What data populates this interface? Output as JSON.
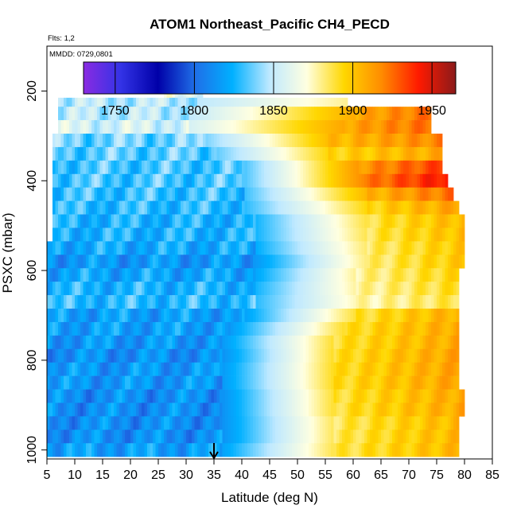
{
  "chart_data": {
    "type": "heatmap",
    "title": "ATOM1 Northeast_Pacific CH4_PECD",
    "flights_label": "Flts: 1,2",
    "dates_label": "MMDD: 0729,0801",
    "xlabel": "Latitude (deg N)",
    "ylabel": "PSXC (mbar)",
    "xlim": [
      5,
      85
    ],
    "ylim": [
      1020,
      100
    ],
    "x_ticks": [
      "5",
      "10",
      "15",
      "20",
      "25",
      "30",
      "35",
      "40",
      "45",
      "50",
      "55",
      "60",
      "65",
      "70",
      "75",
      "80",
      "85"
    ],
    "y_ticks": [
      "200",
      "400",
      "600",
      "800",
      "1000"
    ],
    "colorbar": {
      "range": [
        1730,
        1965
      ],
      "ticks": [
        "1750",
        "1800",
        "1850",
        "1900",
        "1950"
      ],
      "colors": [
        "#8a2be2",
        "#3333e6",
        "#0000a8",
        "#1f6fe8",
        "#00b0ff",
        "#bfe9ff",
        "#ffffe0",
        "#ffd700",
        "#ff8c00",
        "#ff1a00",
        "#8b1a1a"
      ]
    },
    "marker_latitude": 35,
    "profiles": [
      {
        "p": 200,
        "min_lat": 26,
        "max_lat": 33,
        "left": 1862,
        "right": 1872,
        "grad_start": 34,
        "hi_start": 60
      },
      {
        "p": 230,
        "min_lat": 7,
        "max_lat": 59,
        "left": 1848,
        "right": 1890,
        "grad_start": 32,
        "hi_start": 60
      },
      {
        "p": 250,
        "min_lat": 7,
        "max_lat": 74,
        "left": 1848,
        "right": 1925,
        "grad_start": 30,
        "hi_start": 60
      },
      {
        "p": 280,
        "min_lat": 7,
        "max_lat": 74,
        "left": 1855,
        "right": 1925,
        "grad_start": 30,
        "hi_start": 58
      },
      {
        "p": 310,
        "min_lat": 6,
        "max_lat": 76,
        "left": 1838,
        "right": 1920,
        "grad_start": 33,
        "hi_start": 55
      },
      {
        "p": 340,
        "min_lat": 6,
        "max_lat": 76,
        "left": 1835,
        "right": 1910,
        "grad_start": 35,
        "hi_start": 55
      },
      {
        "p": 370,
        "min_lat": 6,
        "max_lat": 76,
        "left": 1832,
        "right": 1935,
        "grad_start": 40,
        "hi_start": 60
      },
      {
        "p": 400,
        "min_lat": 6,
        "max_lat": 77,
        "left": 1832,
        "right": 1945,
        "grad_start": 40,
        "hi_start": 62
      },
      {
        "p": 430,
        "min_lat": 6,
        "max_lat": 78,
        "left": 1830,
        "right": 1925,
        "grad_start": 40,
        "hi_start": 62
      },
      {
        "p": 460,
        "min_lat": 6,
        "max_lat": 79,
        "left": 1828,
        "right": 1912,
        "grad_start": 40,
        "hi_start": 62
      },
      {
        "p": 490,
        "min_lat": 6,
        "max_lat": 80,
        "left": 1825,
        "right": 1905,
        "grad_start": 42,
        "hi_start": 62
      },
      {
        "p": 520,
        "min_lat": 6,
        "max_lat": 80,
        "left": 1825,
        "right": 1903,
        "grad_start": 42,
        "hi_start": 62
      },
      {
        "p": 550,
        "min_lat": 5,
        "max_lat": 80,
        "left": 1822,
        "right": 1900,
        "grad_start": 42,
        "hi_start": 62
      },
      {
        "p": 580,
        "min_lat": 5,
        "max_lat": 80,
        "left": 1815,
        "right": 1900,
        "grad_start": 42,
        "hi_start": 62
      },
      {
        "p": 610,
        "min_lat": 5,
        "max_lat": 79,
        "left": 1820,
        "right": 1895,
        "grad_start": 42,
        "hi_start": 60
      },
      {
        "p": 640,
        "min_lat": 5,
        "max_lat": 79,
        "left": 1825,
        "right": 1892,
        "grad_start": 42,
        "hi_start": 60
      },
      {
        "p": 670,
        "min_lat": 5,
        "max_lat": 79,
        "left": 1828,
        "right": 1888,
        "grad_start": 42,
        "hi_start": 60
      },
      {
        "p": 700,
        "min_lat": 5,
        "max_lat": 79,
        "left": 1818,
        "right": 1908,
        "grad_start": 40,
        "hi_start": 60
      },
      {
        "p": 730,
        "min_lat": 5,
        "max_lat": 79,
        "left": 1818,
        "right": 1910,
        "grad_start": 38,
        "hi_start": 58
      },
      {
        "p": 760,
        "min_lat": 5,
        "max_lat": 79,
        "left": 1815,
        "right": 1910,
        "grad_start": 36,
        "hi_start": 56
      },
      {
        "p": 790,
        "min_lat": 5,
        "max_lat": 79,
        "left": 1812,
        "right": 1912,
        "grad_start": 36,
        "hi_start": 56
      },
      {
        "p": 820,
        "min_lat": 5,
        "max_lat": 79,
        "left": 1815,
        "right": 1912,
        "grad_start": 36,
        "hi_start": 56
      },
      {
        "p": 850,
        "min_lat": 5,
        "max_lat": 79,
        "left": 1815,
        "right": 1912,
        "grad_start": 36,
        "hi_start": 56
      },
      {
        "p": 880,
        "min_lat": 5,
        "max_lat": 80,
        "left": 1812,
        "right": 1910,
        "grad_start": 36,
        "hi_start": 56
      },
      {
        "p": 910,
        "min_lat": 5,
        "max_lat": 80,
        "left": 1812,
        "right": 1910,
        "grad_start": 36,
        "hi_start": 56
      },
      {
        "p": 940,
        "min_lat": 5,
        "max_lat": 79,
        "left": 1812,
        "right": 1905,
        "grad_start": 36,
        "hi_start": 56
      },
      {
        "p": 970,
        "min_lat": 5,
        "max_lat": 79,
        "left": 1812,
        "right": 1905,
        "grad_start": 36,
        "hi_start": 56
      },
      {
        "p": 1000,
        "min_lat": 5,
        "max_lat": 79,
        "left": 1818,
        "right": 1905,
        "grad_start": 36,
        "hi_start": 56
      }
    ]
  }
}
